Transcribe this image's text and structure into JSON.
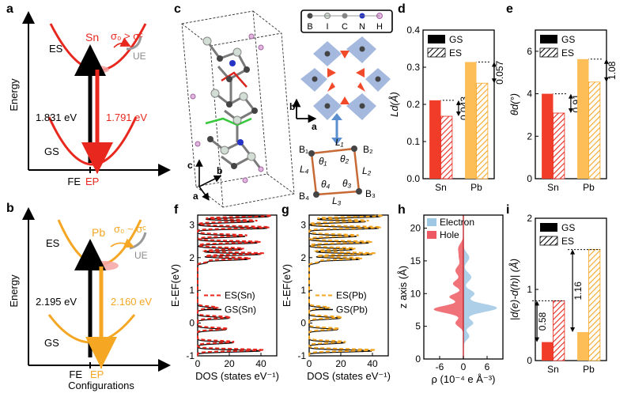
{
  "panel_letters": {
    "a": "a",
    "b": "b",
    "c": "c",
    "d": "d",
    "e": "e",
    "f": "f",
    "g": "g",
    "h": "h",
    "i": "i"
  },
  "colors": {
    "sn": "#e8281e",
    "sn_fill": "#f03c28",
    "pb": "#f5a623",
    "pb_fill": "#fdbe58",
    "electron": "#9fc8e4",
    "hole": "#ee5a63",
    "grey": "#8a8a8a",
    "bond": "#c76a36",
    "octa": "#8fa6d6"
  },
  "panel_a": {
    "y_label": "Energy",
    "es": "ES",
    "gs": "GS",
    "ue": "UE",
    "metal": "Sn",
    "sigma": "σ₀ > σᶜ",
    "absorb": "1.831 eV",
    "emit": "1.791 eV",
    "fe": "FE",
    "ep": "EP"
  },
  "panel_b": {
    "y_label": "Energy",
    "es": "ES",
    "gs": "GS",
    "ue": "UE",
    "metal": "Pb",
    "sigma": "σ₀ ~ σᶜ",
    "absorb": "2.195 eV",
    "emit": "2.160 eV",
    "fe": "FE",
    "ep": "EP",
    "x_label": "Configurations"
  },
  "panel_c": {
    "legend": [
      "B",
      "I",
      "C",
      "N",
      "H"
    ],
    "axes": [
      "c",
      "b",
      "a"
    ],
    "inset_axes": [
      "b",
      "a"
    ],
    "corners": [
      "B₁",
      "B₂",
      "B₃",
      "B₄"
    ],
    "lengths": [
      "L₁",
      "L₂",
      "L₃",
      "L₄"
    ],
    "angles": [
      "θ₁",
      "θ₂",
      "θ₃",
      "θ₄"
    ]
  },
  "chart_data": [
    {
      "panel": "d",
      "type": "bar",
      "categories": [
        "Sn",
        "Pb"
      ],
      "series": [
        {
          "name": "GS",
          "values": [
            0.211,
            0.314
          ]
        },
        {
          "name": "ES",
          "values": [
            0.168,
            0.257
          ]
        }
      ],
      "ylabel": "Ld(Å)",
      "ylim": [
        0,
        0.4
      ],
      "yticks": [
        "0.0",
        "0.1",
        "0.2",
        "0.3",
        "0.4"
      ],
      "annotations": [
        "0.043",
        "0.057"
      ],
      "legend": "top-left"
    },
    {
      "panel": "e",
      "type": "bar",
      "categories": [
        "Sn",
        "Pb"
      ],
      "series": [
        {
          "name": "GS",
          "values": [
            4.0,
            5.63
          ]
        },
        {
          "name": "ES",
          "values": [
            3.09,
            4.55
          ]
        }
      ],
      "ylabel": "θd(°)",
      "ylim": [
        0,
        7
      ],
      "yticks": [
        "0",
        "2",
        "4",
        "6"
      ],
      "annotations": [
        "0.91",
        "1.08"
      ],
      "legend": "top-left"
    },
    {
      "panel": "f",
      "type": "line",
      "xlabel": "DOS (states eV⁻¹)",
      "ylabel": "E-EF(eV)",
      "xlim": [
        0,
        50
      ],
      "ylim": [
        -1,
        3.3
      ],
      "xticks": [
        "0",
        "20",
        "40"
      ],
      "yticks": [
        "-1",
        "0",
        "1",
        "2",
        "3"
      ],
      "series": [
        {
          "name": "ES(Sn)"
        },
        {
          "name": "GS(Sn)"
        }
      ],
      "legend": "center-right"
    },
    {
      "panel": "g",
      "type": "line",
      "xlabel": "DOS (states eV⁻¹)",
      "ylabel": "E-EF(eV)",
      "xlim": [
        0,
        50
      ],
      "ylim": [
        -1,
        3.3
      ],
      "xticks": [
        "0",
        "20",
        "40"
      ],
      "yticks": [
        "-1",
        "0",
        "1",
        "2",
        "3"
      ],
      "series": [
        {
          "name": "ES(Pb)"
        },
        {
          "name": "GS(Pb)"
        }
      ],
      "legend": "center-right"
    },
    {
      "panel": "h",
      "type": "area",
      "xlabel": "ρ (10⁻⁴ e Å⁻³)",
      "ylabel": "z axis (Å)",
      "xlim": [
        -10,
        10
      ],
      "ylim": [
        0,
        22
      ],
      "xticks": [
        "-6",
        "0",
        "6"
      ],
      "yticks": [
        "0",
        "5",
        "10",
        "15",
        "20"
      ],
      "series": [
        {
          "name": "Electron"
        },
        {
          "name": "Hole"
        }
      ],
      "legend": "top"
    },
    {
      "panel": "i",
      "type": "bar",
      "categories": [
        "Sn",
        "Pb"
      ],
      "series": [
        {
          "name": "GS",
          "values": [
            0.26,
            0.4
          ]
        },
        {
          "name": "ES",
          "values": [
            0.84,
            1.56
          ]
        }
      ],
      "ylabel": "|d(e)-d(h)| (Å)",
      "ylim": [
        0,
        2
      ],
      "yticks": [
        "0",
        "1",
        "2"
      ],
      "annotations": [
        "0.58",
        "1.16"
      ],
      "legend": "top-left"
    }
  ]
}
